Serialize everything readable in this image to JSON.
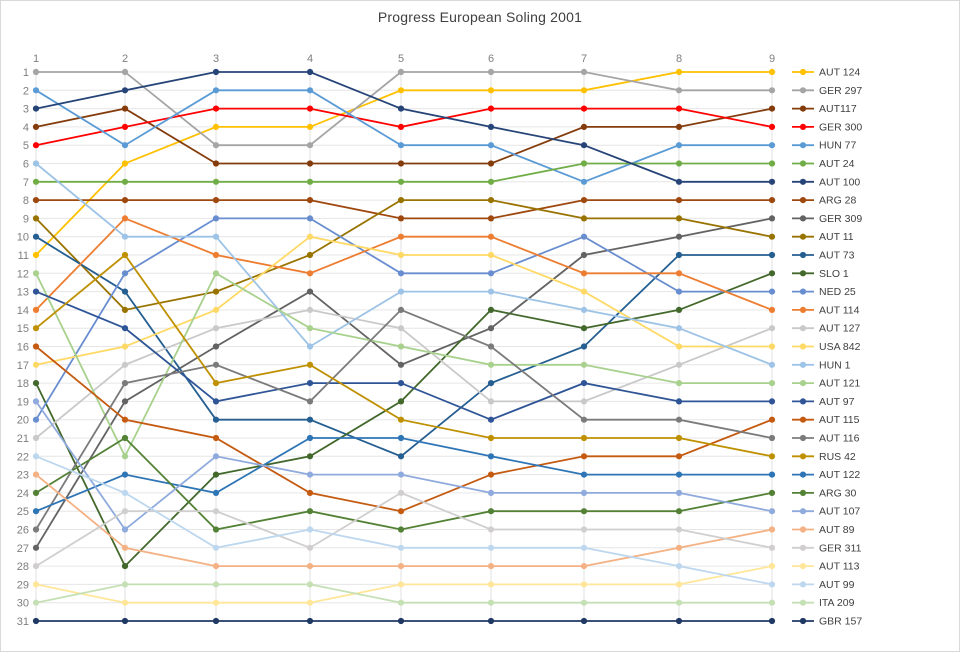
{
  "title": "Progress European Soling 2001",
  "chart_data": {
    "type": "line",
    "title": "Progress European Soling 2001",
    "x_tick_labels": [
      "1",
      "2",
      "3",
      "4",
      "5",
      "6",
      "7",
      "8",
      "9"
    ],
    "y_tick_labels": [
      "1",
      "2",
      "3",
      "4",
      "5",
      "6",
      "7",
      "8",
      "9",
      "10",
      "11",
      "12",
      "13",
      "14",
      "15",
      "16",
      "17",
      "18",
      "19",
      "20",
      "21",
      "22",
      "23",
      "24",
      "25",
      "26",
      "27",
      "28",
      "29",
      "30",
      "31"
    ],
    "x_axis_position": "top",
    "y_axis": {
      "min": 1,
      "max": 31,
      "inverted": true,
      "meaning": "rank"
    },
    "grid": true,
    "legend_position": "right",
    "marker": "circle",
    "series": [
      {
        "name": "AUT 124",
        "color": "#FFC000",
        "values": [
          11,
          6,
          4,
          4,
          2,
          2,
          2,
          1,
          1
        ]
      },
      {
        "name": "GER 297",
        "color": "#A5A5A5",
        "values": [
          1,
          1,
          5,
          5,
          1,
          1,
          1,
          2,
          2
        ]
      },
      {
        "name": "AUT117",
        "color": "#843C0C",
        "values": [
          4,
          3,
          6,
          6,
          6,
          6,
          4,
          4,
          3
        ]
      },
      {
        "name": "GER 300",
        "color": "#FF0000",
        "values": [
          5,
          4,
          3,
          3,
          4,
          3,
          3,
          3,
          4
        ]
      },
      {
        "name": "HUN 77",
        "color": "#5B9BD5",
        "values": [
          2,
          5,
          2,
          2,
          5,
          5,
          7,
          5,
          5
        ]
      },
      {
        "name": "AUT 24",
        "color": "#70AD47",
        "values": [
          7,
          7,
          7,
          7,
          7,
          7,
          6,
          6,
          6
        ]
      },
      {
        "name": "AUT 100",
        "color": "#264478",
        "values": [
          3,
          2,
          1,
          1,
          3,
          4,
          5,
          7,
          7
        ]
      },
      {
        "name": "ARG 28",
        "color": "#9E480E",
        "values": [
          8,
          8,
          8,
          8,
          9,
          9,
          8,
          8,
          8
        ]
      },
      {
        "name": "GER 309",
        "color": "#636363",
        "values": [
          27,
          19,
          16,
          13,
          17,
          15,
          11,
          10,
          9
        ]
      },
      {
        "name": "AUT 11",
        "color": "#997300",
        "values": [
          9,
          14,
          13,
          11,
          8,
          8,
          9,
          9,
          10
        ]
      },
      {
        "name": "AUT 73",
        "color": "#255E91",
        "values": [
          10,
          13,
          20,
          20,
          22,
          18,
          16,
          11,
          11
        ]
      },
      {
        "name": "SLO 1",
        "color": "#43682B",
        "values": [
          18,
          28,
          23,
          22,
          19,
          14,
          15,
          14,
          12
        ]
      },
      {
        "name": "NED 25",
        "color": "#698ED0",
        "values": [
          20,
          12,
          9,
          9,
          12,
          12,
          10,
          13,
          13
        ]
      },
      {
        "name": "AUT 114",
        "color": "#ED7D31",
        "values": [
          14,
          9,
          11,
          12,
          10,
          10,
          12,
          12,
          14
        ]
      },
      {
        "name": "AUT 127",
        "color": "#C9C9C9",
        "values": [
          21,
          17,
          15,
          14,
          15,
          19,
          19,
          17,
          15
        ]
      },
      {
        "name": "USA 842",
        "color": "#FFD966",
        "values": [
          17,
          16,
          14,
          10,
          11,
          11,
          13,
          16,
          16
        ]
      },
      {
        "name": "HUN 1",
        "color": "#9DC3E6",
        "values": [
          6,
          10,
          10,
          16,
          13,
          13,
          14,
          15,
          17
        ]
      },
      {
        "name": "AUT 121",
        "color": "#A9D18E",
        "values": [
          12,
          22,
          12,
          15,
          16,
          17,
          17,
          18,
          18
        ]
      },
      {
        "name": "AUT 97",
        "color": "#2F5597",
        "values": [
          13,
          15,
          19,
          18,
          18,
          20,
          18,
          19,
          19
        ]
      },
      {
        "name": "AUT 115",
        "color": "#C55A11",
        "values": [
          16,
          20,
          21,
          24,
          25,
          23,
          22,
          22,
          20
        ]
      },
      {
        "name": "AUT 116",
        "color": "#7B7B7B",
        "values": [
          26,
          18,
          17,
          19,
          14,
          16,
          20,
          20,
          21
        ]
      },
      {
        "name": "RUS 42",
        "color": "#BF9000",
        "values": [
          15,
          11,
          18,
          17,
          20,
          21,
          21,
          21,
          22
        ]
      },
      {
        "name": "AUT 122",
        "color": "#2E75B6",
        "values": [
          25,
          23,
          24,
          21,
          21,
          22,
          23,
          23,
          23
        ]
      },
      {
        "name": "ARG 30",
        "color": "#538135",
        "values": [
          24,
          21,
          26,
          25,
          26,
          25,
          25,
          25,
          24
        ]
      },
      {
        "name": "AUT 107",
        "color": "#8FAADC",
        "values": [
          19,
          26,
          22,
          23,
          23,
          24,
          24,
          24,
          25
        ]
      },
      {
        "name": "AUT 89",
        "color": "#F4B183",
        "values": [
          23,
          27,
          28,
          28,
          28,
          28,
          28,
          27,
          26
        ]
      },
      {
        "name": "GER 311",
        "color": "#D0CECE",
        "values": [
          28,
          25,
          25,
          27,
          24,
          26,
          26,
          26,
          27
        ]
      },
      {
        "name": "AUT 113",
        "color": "#FFE699",
        "values": [
          29,
          30,
          30,
          30,
          29,
          29,
          29,
          29,
          28
        ]
      },
      {
        "name": "AUT 99",
        "color": "#BDD7EE",
        "values": [
          22,
          24,
          27,
          26,
          27,
          27,
          27,
          28,
          29
        ]
      },
      {
        "name": "ITA 209",
        "color": "#C5E0B4",
        "values": [
          30,
          29,
          29,
          29,
          30,
          30,
          30,
          30,
          30
        ]
      },
      {
        "name": "GBR 157",
        "color": "#1F3864",
        "values": [
          31,
          31,
          31,
          31,
          31,
          31,
          31,
          31,
          31
        ]
      }
    ]
  }
}
